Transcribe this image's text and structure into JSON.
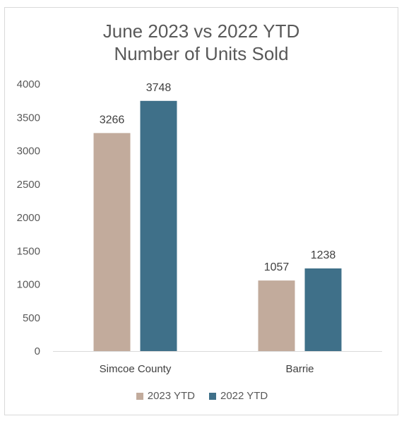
{
  "chart_data": {
    "type": "bar",
    "title_lines": [
      "June 2023 vs 2022 YTD",
      "Number of Units Sold"
    ],
    "categories": [
      "Simcoe County",
      "Barrie"
    ],
    "series": [
      {
        "name": "2023 YTD",
        "values": [
          3266,
          1057
        ],
        "color": "#c2ab9c"
      },
      {
        "name": "2022 YTD",
        "values": [
          3748,
          1238
        ],
        "color": "#3f7089"
      }
    ],
    "ylim": [
      0,
      4000
    ],
    "yticks": [
      0,
      500,
      1000,
      1500,
      2000,
      2500,
      3000,
      3500,
      4000
    ],
    "grid": false,
    "legend_position": "bottom"
  }
}
